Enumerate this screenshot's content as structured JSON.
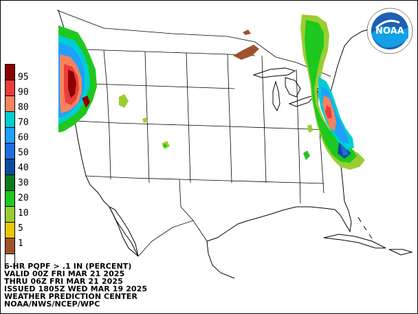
{
  "product": {
    "line1": "6-HR PQPF > .1 IN (PERCENT)",
    "line2": "VALID 00Z FRI MAR 21 2025",
    "line3": "THRU 06Z FRI MAR 21 2025",
    "line4": "ISSUED 1805Z WED MAR 19 2025",
    "line5": "WEATHER PREDICTION CENTER",
    "line6": "NOAA/NWS/NCEP/WPC"
  },
  "logo": {
    "text": "NOAA"
  },
  "legend": {
    "entries": [
      {
        "label": "95",
        "color": "#8b0000"
      },
      {
        "label": "90",
        "color": "#ee3b3b"
      },
      {
        "label": "80",
        "color": "#f4845f"
      },
      {
        "label": "70",
        "color": "#00ced1"
      },
      {
        "label": "60",
        "color": "#1ea0ff"
      },
      {
        "label": "50",
        "color": "#1e6fdc"
      },
      {
        "label": "40",
        "color": "#0a4ba0"
      },
      {
        "label": "30",
        "color": "#0a7a1e"
      },
      {
        "label": "20",
        "color": "#1ec81e"
      },
      {
        "label": "10",
        "color": "#9acd32"
      },
      {
        "label": "5",
        "color": "#e6c800"
      },
      {
        "label": "1",
        "color": "#a0522d"
      },
      {
        "label": "",
        "color": "#ffffff"
      }
    ]
  }
}
